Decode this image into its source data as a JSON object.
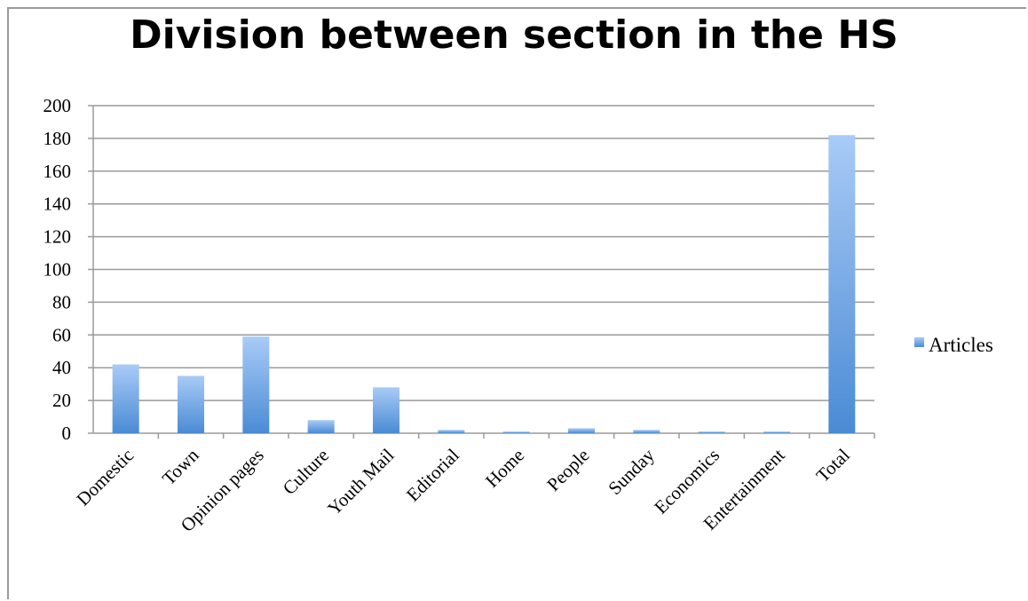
{
  "chart_data": {
    "type": "bar",
    "title": "Division between section in the HS",
    "xlabel": "",
    "ylabel": "",
    "ylim": [
      0,
      200
    ],
    "yticks": [
      0,
      20,
      40,
      60,
      80,
      100,
      120,
      140,
      160,
      180,
      200
    ],
    "categories": [
      "Domestic",
      "Town",
      "Opinion pages",
      "Culture",
      "Youth Mail",
      "Editorial",
      "Home",
      "People",
      "Sunday",
      "Economics",
      "Entertainment",
      "Total"
    ],
    "series": [
      {
        "name": "Articles",
        "values": [
          42,
          35,
          59,
          8,
          28,
          2,
          1,
          3,
          2,
          1,
          1,
          182
        ]
      }
    ],
    "grid": true,
    "legend_position": "right",
    "colors": {
      "bar_top": "#a9cbf7",
      "bar_bottom": "#4a8bd4",
      "grid": "#9a9a9a"
    }
  }
}
